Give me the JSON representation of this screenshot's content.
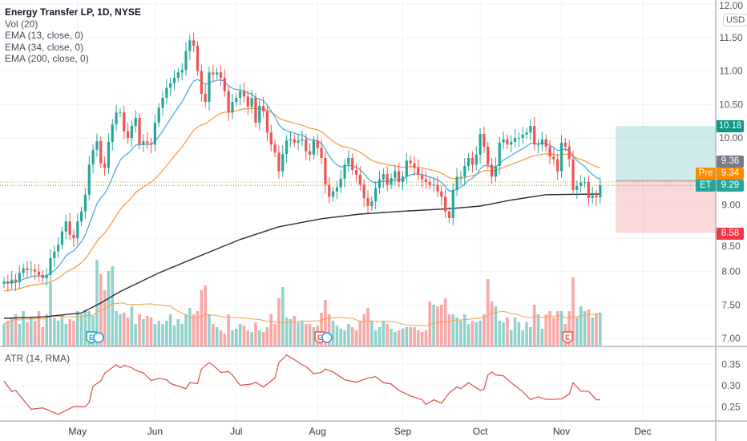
{
  "legend": {
    "title": "Energy Transfer LP, 1D, NYSE",
    "indicators": [
      "Vol (20)",
      "EMA (13, close, 0)",
      "EMA (34, close, 0)",
      "EMA (200, close, 0)"
    ],
    "atr": "ATR (14, RMA)"
  },
  "currency": "USD",
  "price_tags": {
    "target": "10.18",
    "entry": "9.36",
    "pre_label": "Pre",
    "pre": "9.34",
    "et_label": "ET",
    "last": "9.29",
    "stop": "8.58"
  },
  "colors": {
    "up": "#26a69a",
    "down": "#ef5350",
    "ema13": "#42a5d8",
    "ema34": "#f7953a",
    "ema200": "#2a2e39",
    "atr": "#e04848",
    "vol_ma": "#f7a04a",
    "pre": "#ff8c00"
  },
  "chart_data": {
    "type": "candlestick",
    "title": "Energy Transfer LP, 1D, NYSE",
    "price_axis": {
      "ticks": [
        "12.00",
        "11.50",
        "11.00",
        "10.50",
        "10.00",
        "9.00",
        "8.50",
        "8.00",
        "7.50",
        "7.00"
      ],
      "range": [
        6.95,
        12.05
      ]
    },
    "atr_axis": {
      "ticks": [
        "0.35",
        "0.30",
        "0.25"
      ]
    },
    "time_axis": {
      "labels": [
        "May",
        "Jun",
        "Jul",
        "Aug",
        "Sep",
        "Oct",
        "Nov",
        "Dec"
      ],
      "label_bar_index": [
        19,
        39,
        60,
        81,
        103,
        123,
        144,
        165
      ]
    },
    "close": [
      7.85,
      7.82,
      7.88,
      7.84,
      7.98,
      8.05,
      8.02,
      8.03,
      8.0,
      7.95,
      7.9,
      7.95,
      8.2,
      8.3,
      8.4,
      8.6,
      8.75,
      8.55,
      8.5,
      8.75,
      8.9,
      9.15,
      9.6,
      9.82,
      9.95,
      9.62,
      9.55,
      9.94,
      10.2,
      10.38,
      10.38,
      10.1,
      10.0,
      10.18,
      10.3,
      9.9,
      9.95,
      9.92,
      9.9,
      10.23,
      10.45,
      10.6,
      10.75,
      10.82,
      10.9,
      10.98,
      11.02,
      11.3,
      11.46,
      11.38,
      11.0,
      10.66,
      10.54,
      10.98,
      10.95,
      10.98,
      10.9,
      10.7,
      10.38,
      10.54,
      10.6,
      10.7,
      10.62,
      10.47,
      10.6,
      10.23,
      10.48,
      10.4,
      10.08,
      9.9,
      9.78,
      9.5,
      9.76,
      9.96,
      9.98,
      9.93,
      9.96,
      9.98,
      9.8,
      9.75,
      9.96,
      9.85,
      9.7,
      9.3,
      9.12,
      9.2,
      9.26,
      9.39,
      9.6,
      9.7,
      9.52,
      9.45,
      9.3,
      9.1,
      8.98,
      9.05,
      9.25,
      9.38,
      9.46,
      9.3,
      9.4,
      9.5,
      9.34,
      9.42,
      9.66,
      9.62,
      9.55,
      9.45,
      9.38,
      9.34,
      9.3,
      9.3,
      9.2,
      9.12,
      8.9,
      8.8,
      9.22,
      9.42,
      9.42,
      9.58,
      9.7,
      9.6,
      9.75,
      10.06,
      9.87,
      9.6,
      9.42,
      9.58,
      9.93,
      9.98,
      9.9,
      9.94,
      10.0,
      10.0,
      10.05,
      10.08,
      10.18,
      9.9,
      9.9,
      9.98,
      9.87,
      9.72,
      9.68,
      9.5,
      9.93,
      9.87,
      9.68,
      9.22,
      9.28,
      9.33,
      9.34,
      9.1,
      9.14,
      9.11,
      9.29
    ],
    "volume_m": [
      14,
      16,
      18,
      20,
      14,
      22,
      15,
      18,
      16,
      22,
      12,
      20,
      40,
      18,
      16,
      20,
      14,
      17,
      16,
      22,
      20,
      23,
      22,
      19,
      54,
      45,
      35,
      47,
      50,
      22,
      20,
      21,
      18,
      25,
      14,
      20,
      17,
      19,
      18,
      14,
      16,
      14,
      16,
      20,
      13,
      17,
      14,
      20,
      24,
      20,
      22,
      35,
      38,
      20,
      14,
      12,
      10,
      8,
      20,
      10,
      11,
      14,
      13,
      10,
      9,
      15,
      10,
      9,
      12,
      20,
      14,
      30,
      37,
      18,
      17,
      19,
      15,
      16,
      14,
      14,
      12,
      13,
      21,
      29,
      20,
      16,
      13,
      11,
      10,
      14,
      12,
      10,
      16,
      20,
      24,
      16,
      10,
      12,
      16,
      14,
      11,
      9,
      10,
      11,
      12,
      12,
      12,
      10,
      9,
      10,
      28,
      26,
      25,
      26,
      30,
      20,
      20,
      18,
      16,
      20,
      14,
      16,
      15,
      16,
      20,
      42,
      28,
      25,
      16,
      15,
      18,
      10,
      18,
      15,
      10,
      15,
      12,
      26,
      20,
      11,
      20,
      22,
      18,
      22,
      22,
      14,
      22,
      43,
      18,
      25,
      22,
      23,
      18,
      20,
      21
    ],
    "ema200": [
      [
        0,
        7.3
      ],
      [
        10,
        7.32
      ],
      [
        20,
        7.38
      ],
      [
        25,
        7.53
      ],
      [
        30,
        7.7
      ],
      [
        40,
        7.98
      ],
      [
        50,
        8.22
      ],
      [
        61,
        8.48
      ],
      [
        71,
        8.67
      ],
      [
        82,
        8.79
      ],
      [
        92,
        8.86
      ],
      [
        102,
        8.9
      ],
      [
        115,
        8.94
      ],
      [
        123,
        8.98
      ],
      [
        131,
        9.07
      ],
      [
        140,
        9.15
      ],
      [
        154,
        9.16
      ]
    ],
    "atr": [
      [
        0,
        0.311
      ],
      [
        2,
        0.286
      ],
      [
        3,
        0.289
      ],
      [
        7,
        0.245
      ],
      [
        10,
        0.248
      ],
      [
        14,
        0.233
      ],
      [
        18,
        0.251
      ],
      [
        21,
        0.251
      ],
      [
        22,
        0.261
      ],
      [
        23,
        0.299
      ],
      [
        25,
        0.311
      ],
      [
        26,
        0.329
      ],
      [
        29,
        0.349
      ],
      [
        30,
        0.342
      ],
      [
        31,
        0.348
      ],
      [
        33,
        0.342
      ],
      [
        34,
        0.336
      ],
      [
        36,
        0.33
      ],
      [
        38,
        0.312
      ],
      [
        40,
        0.317
      ],
      [
        42,
        0.314
      ],
      [
        43,
        0.305
      ],
      [
        47,
        0.293
      ],
      [
        48,
        0.307
      ],
      [
        50,
        0.305
      ],
      [
        51,
        0.339
      ],
      [
        53,
        0.354
      ],
      [
        54,
        0.348
      ],
      [
        56,
        0.331
      ],
      [
        58,
        0.333
      ],
      [
        59,
        0.325
      ],
      [
        61,
        0.301
      ],
      [
        64,
        0.304
      ],
      [
        65,
        0.308
      ],
      [
        67,
        0.297
      ],
      [
        70,
        0.318
      ],
      [
        71,
        0.354
      ],
      [
        73,
        0.372
      ],
      [
        75,
        0.361
      ],
      [
        77,
        0.349
      ],
      [
        78,
        0.345
      ],
      [
        80,
        0.328
      ],
      [
        82,
        0.331
      ],
      [
        83,
        0.339
      ],
      [
        85,
        0.332
      ],
      [
        88,
        0.314
      ],
      [
        91,
        0.308
      ],
      [
        94,
        0.318
      ],
      [
        96,
        0.321
      ],
      [
        98,
        0.307
      ],
      [
        100,
        0.304
      ],
      [
        102,
        0.289
      ],
      [
        105,
        0.276
      ],
      [
        108,
        0.267
      ],
      [
        109,
        0.256
      ],
      [
        111,
        0.267
      ],
      [
        113,
        0.259
      ],
      [
        115,
        0.283
      ],
      [
        117,
        0.297
      ],
      [
        118,
        0.293
      ],
      [
        120,
        0.307
      ],
      [
        123,
        0.289
      ],
      [
        124,
        0.292
      ],
      [
        125,
        0.325
      ],
      [
        126,
        0.332
      ],
      [
        127,
        0.325
      ],
      [
        129,
        0.323
      ],
      [
        131,
        0.307
      ],
      [
        134,
        0.286
      ],
      [
        136,
        0.267
      ],
      [
        138,
        0.274
      ],
      [
        140,
        0.268
      ],
      [
        142,
        0.268
      ],
      [
        144,
        0.269
      ],
      [
        146,
        0.28
      ],
      [
        147,
        0.307
      ],
      [
        149,
        0.287
      ],
      [
        151,
        0.287
      ],
      [
        153,
        0.267
      ],
      [
        154,
        0.267
      ]
    ],
    "events": [
      {
        "bar": 23,
        "type": "E"
      },
      {
        "bar": 24,
        "type": "D"
      },
      {
        "bar": 82,
        "type": "E"
      },
      {
        "bar": 83,
        "type": "D"
      },
      {
        "bar": 146,
        "type": "E"
      }
    ],
    "position": {
      "target": 10.18,
      "entry": 9.36,
      "stop": 8.58,
      "start_bar": 158
    },
    "pre_price": 9.34,
    "last_price": 9.29
  }
}
